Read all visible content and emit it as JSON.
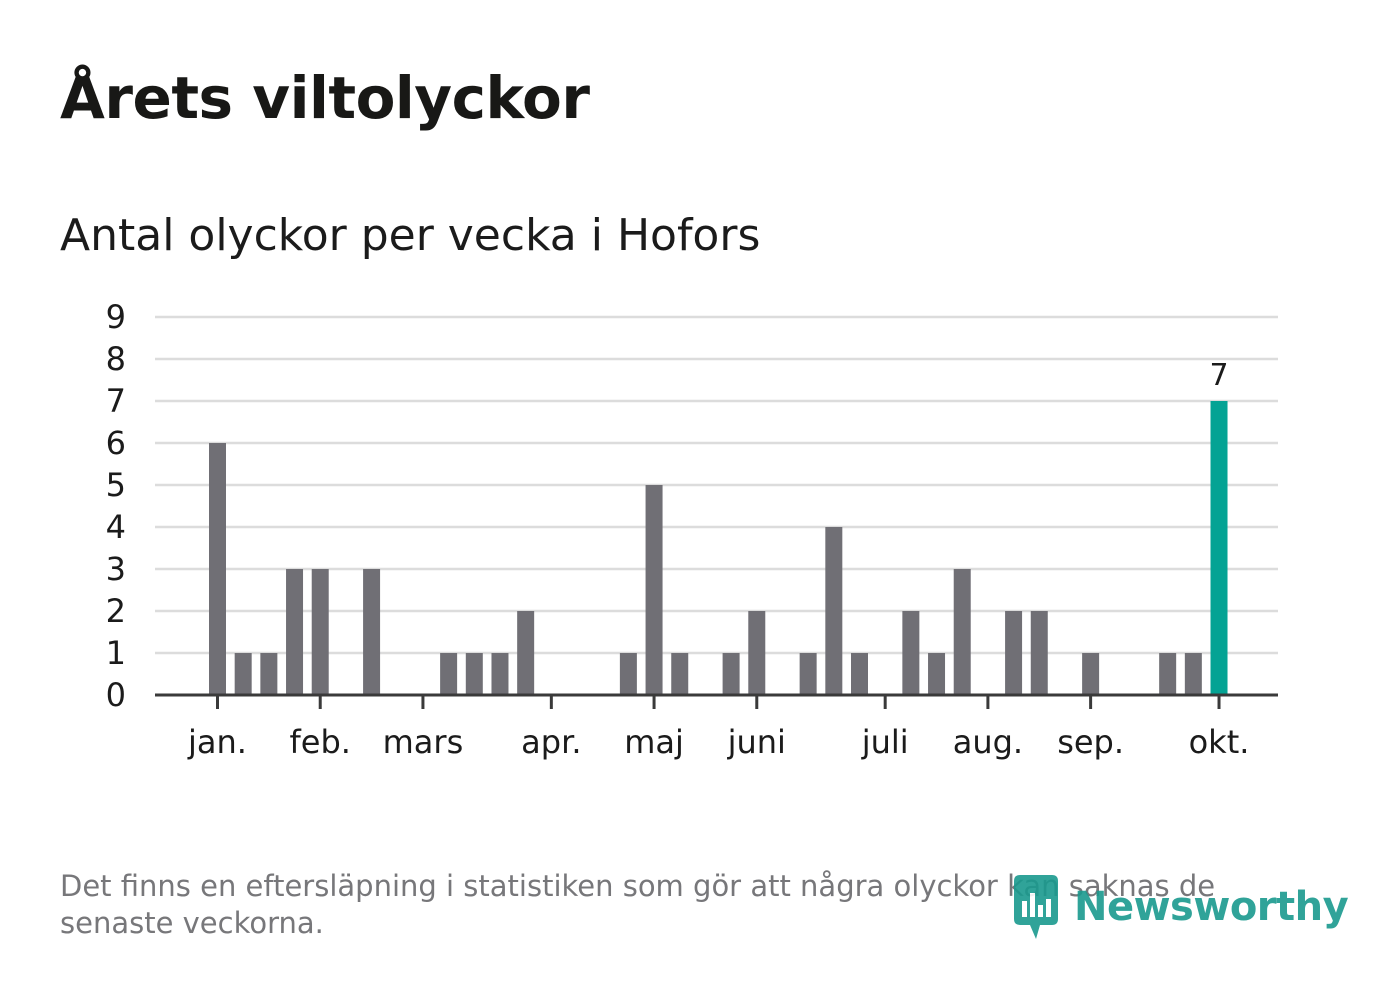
{
  "title": "Årets viltolyckor",
  "subtitle": "Antal olyckor per vecka i Hofors",
  "footnote": "Det finns en eftersläpning i statistiken som gör att några olyckor kan saknas de senaste veckorna.",
  "brand": {
    "name": "Newsworthy",
    "icon": "newsworthy-logo-icon",
    "color": "#1a9a8e"
  },
  "colors": {
    "bar": "#706f75",
    "highlight": "#04a394",
    "grid": "#dcdcdc",
    "axis": "#3a3a3a"
  },
  "chart_data": {
    "type": "bar",
    "title": "Antal olyckor per vecka i Hofors",
    "xlabel": "",
    "ylabel": "",
    "ylim": [
      0,
      9
    ],
    "yticks": [
      "0",
      "1",
      "2",
      "3",
      "4",
      "5",
      "6",
      "7",
      "8",
      "9"
    ],
    "grid": true,
    "x": [
      1,
      2,
      3,
      4,
      5,
      6,
      7,
      8,
      9,
      10,
      11,
      12,
      13,
      14,
      15,
      16,
      17,
      18,
      19,
      20,
      21,
      22,
      23,
      24,
      25,
      26,
      27,
      28,
      29,
      30,
      31,
      32,
      33,
      34,
      35,
      36,
      37,
      38,
      39,
      40
    ],
    "values": [
      6,
      1,
      1,
      3,
      3,
      0,
      3,
      0,
      0,
      1,
      1,
      1,
      2,
      0,
      0,
      0,
      1,
      5,
      1,
      0,
      1,
      2,
      0,
      1,
      4,
      1,
      0,
      2,
      1,
      3,
      0,
      2,
      2,
      0,
      1,
      0,
      0,
      1,
      1,
      7
    ],
    "highlight_index": 39,
    "highlight_label": "7",
    "month_ticks": [
      {
        "label": "jan.",
        "week": 1
      },
      {
        "label": "feb.",
        "week": 5
      },
      {
        "label": "mars",
        "week": 9
      },
      {
        "label": "apr.",
        "week": 14
      },
      {
        "label": "maj",
        "week": 18
      },
      {
        "label": "juni",
        "week": 22
      },
      {
        "label": "juli",
        "week": 27
      },
      {
        "label": "aug.",
        "week": 31
      },
      {
        "label": "sep.",
        "week": 35
      },
      {
        "label": "okt.",
        "week": 40
      }
    ]
  }
}
